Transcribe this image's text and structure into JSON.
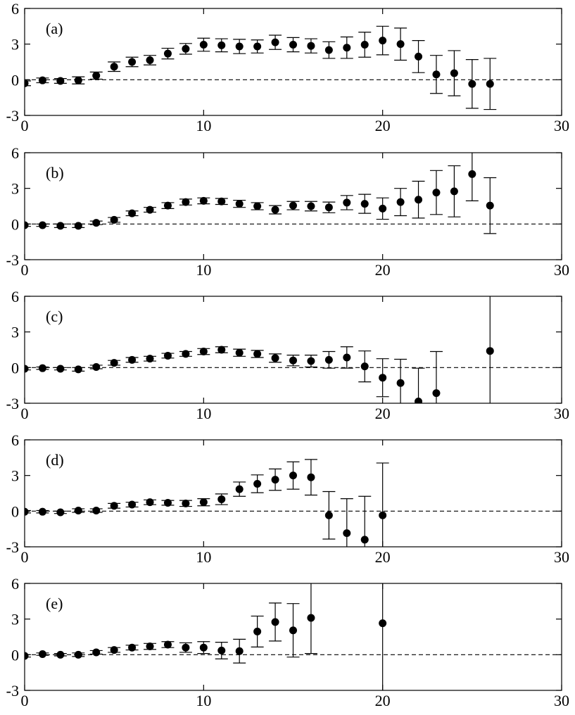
{
  "chart_data": [
    {
      "type": "scatter",
      "panel_label": "(a)",
      "xlim": [
        0,
        30
      ],
      "ylim": [
        -3,
        6
      ],
      "x_ticks": [
        "0",
        "10",
        "20",
        "30"
      ],
      "y_ticks": [
        "-3",
        "0",
        "3",
        "6"
      ],
      "reference_line_y": 0,
      "points": [
        {
          "x": 0,
          "y": -0.3,
          "err": 0.2
        },
        {
          "x": 1,
          "y": -0.05,
          "err": 0.2
        },
        {
          "x": 2,
          "y": -0.1,
          "err": 0.2
        },
        {
          "x": 3,
          "y": -0.05,
          "err": 0.3
        },
        {
          "x": 4,
          "y": 0.35,
          "err": 0.3
        },
        {
          "x": 5,
          "y": 1.1,
          "err": 0.4
        },
        {
          "x": 6,
          "y": 1.5,
          "err": 0.4
        },
        {
          "x": 7,
          "y": 1.65,
          "err": 0.4
        },
        {
          "x": 8,
          "y": 2.2,
          "err": 0.45
        },
        {
          "x": 9,
          "y": 2.6,
          "err": 0.45
        },
        {
          "x": 10,
          "y": 2.95,
          "err": 0.55
        },
        {
          "x": 11,
          "y": 2.9,
          "err": 0.55
        },
        {
          "x": 12,
          "y": 2.8,
          "err": 0.6
        },
        {
          "x": 13,
          "y": 2.8,
          "err": 0.55
        },
        {
          "x": 14,
          "y": 3.15,
          "err": 0.6
        },
        {
          "x": 15,
          "y": 2.95,
          "err": 0.6
        },
        {
          "x": 16,
          "y": 2.85,
          "err": 0.6
        },
        {
          "x": 17,
          "y": 2.5,
          "err": 0.7
        },
        {
          "x": 18,
          "y": 2.7,
          "err": 0.9
        },
        {
          "x": 19,
          "y": 2.95,
          "err": 1.05
        },
        {
          "x": 20,
          "y": 3.3,
          "err": 1.2
        },
        {
          "x": 21,
          "y": 3.0,
          "err": 1.35
        },
        {
          "x": 22,
          "y": 1.95,
          "err": 1.35
        },
        {
          "x": 23,
          "y": 0.45,
          "err": 1.6
        },
        {
          "x": 24,
          "y": 0.55,
          "err": 1.9
        },
        {
          "x": 25,
          "y": -0.35,
          "err": 2.05
        },
        {
          "x": 26,
          "y": -0.35,
          "err": 2.15
        }
      ]
    },
    {
      "type": "scatter",
      "panel_label": "(b)",
      "xlim": [
        0,
        30
      ],
      "ylim": [
        -3,
        6
      ],
      "x_ticks": [
        "0",
        "10",
        "20",
        "30"
      ],
      "y_ticks": [
        "-3",
        "0",
        "3",
        "6"
      ],
      "reference_line_y": 0,
      "points": [
        {
          "x": 0,
          "y": -0.1,
          "err": 0.1
        },
        {
          "x": 1,
          "y": -0.1,
          "err": 0.1
        },
        {
          "x": 2,
          "y": -0.15,
          "err": 0.15
        },
        {
          "x": 3,
          "y": -0.15,
          "err": 0.15
        },
        {
          "x": 4,
          "y": 0.1,
          "err": 0.15
        },
        {
          "x": 5,
          "y": 0.35,
          "err": 0.2
        },
        {
          "x": 6,
          "y": 0.9,
          "err": 0.2
        },
        {
          "x": 7,
          "y": 1.2,
          "err": 0.2
        },
        {
          "x": 8,
          "y": 1.55,
          "err": 0.25
        },
        {
          "x": 9,
          "y": 1.85,
          "err": 0.25
        },
        {
          "x": 10,
          "y": 1.95,
          "err": 0.25
        },
        {
          "x": 11,
          "y": 1.9,
          "err": 0.25
        },
        {
          "x": 12,
          "y": 1.7,
          "err": 0.3
        },
        {
          "x": 13,
          "y": 1.5,
          "err": 0.3
        },
        {
          "x": 14,
          "y": 1.2,
          "err": 0.35
        },
        {
          "x": 15,
          "y": 1.55,
          "err": 0.35
        },
        {
          "x": 16,
          "y": 1.5,
          "err": 0.4
        },
        {
          "x": 17,
          "y": 1.4,
          "err": 0.45
        },
        {
          "x": 18,
          "y": 1.8,
          "err": 0.6
        },
        {
          "x": 19,
          "y": 1.7,
          "err": 0.8
        },
        {
          "x": 20,
          "y": 1.3,
          "err": 0.9
        },
        {
          "x": 21,
          "y": 1.85,
          "err": 1.15
        },
        {
          "x": 22,
          "y": 2.05,
          "err": 1.55
        },
        {
          "x": 23,
          "y": 2.65,
          "err": 1.85
        },
        {
          "x": 24,
          "y": 2.75,
          "err": 2.15
        },
        {
          "x": 25,
          "y": 4.2,
          "err": 2.25
        },
        {
          "x": 26,
          "y": 1.55,
          "err": 2.35
        }
      ]
    },
    {
      "type": "scatter",
      "panel_label": "(c)",
      "xlim": [
        0,
        30
      ],
      "ylim": [
        -3,
        6
      ],
      "x_ticks": [
        "0",
        "10",
        "20",
        "30"
      ],
      "y_ticks": [
        "-3",
        "0",
        "3",
        "6"
      ],
      "reference_line_y": 0,
      "points": [
        {
          "x": 0,
          "y": -0.1,
          "err": 0.1
        },
        {
          "x": 1,
          "y": -0.05,
          "err": 0.1
        },
        {
          "x": 2,
          "y": -0.1,
          "err": 0.1
        },
        {
          "x": 3,
          "y": -0.15,
          "err": 0.15
        },
        {
          "x": 4,
          "y": 0.05,
          "err": 0.15
        },
        {
          "x": 5,
          "y": 0.4,
          "err": 0.2
        },
        {
          "x": 6,
          "y": 0.65,
          "err": 0.2
        },
        {
          "x": 7,
          "y": 0.75,
          "err": 0.2
        },
        {
          "x": 8,
          "y": 1.0,
          "err": 0.2
        },
        {
          "x": 9,
          "y": 1.15,
          "err": 0.2
        },
        {
          "x": 10,
          "y": 1.35,
          "err": 0.25
        },
        {
          "x": 11,
          "y": 1.5,
          "err": 0.25
        },
        {
          "x": 12,
          "y": 1.25,
          "err": 0.3
        },
        {
          "x": 13,
          "y": 1.15,
          "err": 0.3
        },
        {
          "x": 14,
          "y": 0.8,
          "err": 0.35
        },
        {
          "x": 15,
          "y": 0.6,
          "err": 0.45
        },
        {
          "x": 16,
          "y": 0.55,
          "err": 0.5
        },
        {
          "x": 17,
          "y": 0.65,
          "err": 0.7
        },
        {
          "x": 18,
          "y": 0.85,
          "err": 0.9
        },
        {
          "x": 19,
          "y": 0.1,
          "err": 1.3
        },
        {
          "x": 20,
          "y": -0.85,
          "err": 1.6
        },
        {
          "x": 21,
          "y": -1.3,
          "err": 2.0
        },
        {
          "x": 22,
          "y": -2.85,
          "err": 2.8
        },
        {
          "x": 23,
          "y": -2.15,
          "err": 3.5
        },
        {
          "x": 26,
          "y": 1.4,
          "err": 5.5
        }
      ]
    },
    {
      "type": "scatter",
      "panel_label": "(d)",
      "xlim": [
        0,
        30
      ],
      "ylim": [
        -3,
        6
      ],
      "x_ticks": [
        "0",
        "10",
        "20",
        "30"
      ],
      "y_ticks": [
        "-3",
        "0",
        "3",
        "6"
      ],
      "reference_line_y": 0,
      "points": [
        {
          "x": 0,
          "y": -0.05,
          "err": 0.1
        },
        {
          "x": 1,
          "y": -0.05,
          "err": 0.1
        },
        {
          "x": 2,
          "y": -0.1,
          "err": 0.1
        },
        {
          "x": 3,
          "y": 0.05,
          "err": 0.15
        },
        {
          "x": 4,
          "y": 0.05,
          "err": 0.15
        },
        {
          "x": 5,
          "y": 0.45,
          "err": 0.2
        },
        {
          "x": 6,
          "y": 0.55,
          "err": 0.2
        },
        {
          "x": 7,
          "y": 0.75,
          "err": 0.2
        },
        {
          "x": 8,
          "y": 0.7,
          "err": 0.2
        },
        {
          "x": 9,
          "y": 0.65,
          "err": 0.25
        },
        {
          "x": 10,
          "y": 0.75,
          "err": 0.3
        },
        {
          "x": 11,
          "y": 1.0,
          "err": 0.45
        },
        {
          "x": 12,
          "y": 1.85,
          "err": 0.6
        },
        {
          "x": 13,
          "y": 2.3,
          "err": 0.75
        },
        {
          "x": 14,
          "y": 2.65,
          "err": 0.9
        },
        {
          "x": 15,
          "y": 3.0,
          "err": 1.15
        },
        {
          "x": 16,
          "y": 2.85,
          "err": 1.5
        },
        {
          "x": 17,
          "y": -0.35,
          "err": 2.0
        },
        {
          "x": 18,
          "y": -1.85,
          "err": 2.9
        },
        {
          "x": 19,
          "y": -2.4,
          "err": 3.65
        },
        {
          "x": 20,
          "y": -0.35,
          "err": 4.4
        }
      ]
    },
    {
      "type": "scatter",
      "panel_label": "(e)",
      "xlim": [
        0,
        30
      ],
      "ylim": [
        -3,
        6
      ],
      "x_ticks": [
        "0",
        "10",
        "20",
        "30"
      ],
      "y_ticks": [
        "-3",
        "0",
        "3",
        "6"
      ],
      "reference_line_y": 0,
      "points": [
        {
          "x": 0,
          "y": -0.1,
          "err": 0.1
        },
        {
          "x": 1,
          "y": 0.05,
          "err": 0.1
        },
        {
          "x": 2,
          "y": 0.0,
          "err": 0.1
        },
        {
          "x": 3,
          "y": 0.0,
          "err": 0.15
        },
        {
          "x": 4,
          "y": 0.2,
          "err": 0.15
        },
        {
          "x": 5,
          "y": 0.4,
          "err": 0.2
        },
        {
          "x": 6,
          "y": 0.6,
          "err": 0.2
        },
        {
          "x": 7,
          "y": 0.7,
          "err": 0.25
        },
        {
          "x": 8,
          "y": 0.85,
          "err": 0.25
        },
        {
          "x": 9,
          "y": 0.6,
          "err": 0.4
        },
        {
          "x": 10,
          "y": 0.6,
          "err": 0.5
        },
        {
          "x": 11,
          "y": 0.35,
          "err": 0.7
        },
        {
          "x": 12,
          "y": 0.3,
          "err": 1.0
        },
        {
          "x": 13,
          "y": 1.95,
          "err": 1.3
        },
        {
          "x": 14,
          "y": 2.75,
          "err": 1.6
        },
        {
          "x": 15,
          "y": 2.05,
          "err": 2.25
        },
        {
          "x": 16,
          "y": 3.1,
          "err": 3.0
        },
        {
          "x": 20,
          "y": 2.65,
          "err": 6.0
        }
      ]
    }
  ]
}
